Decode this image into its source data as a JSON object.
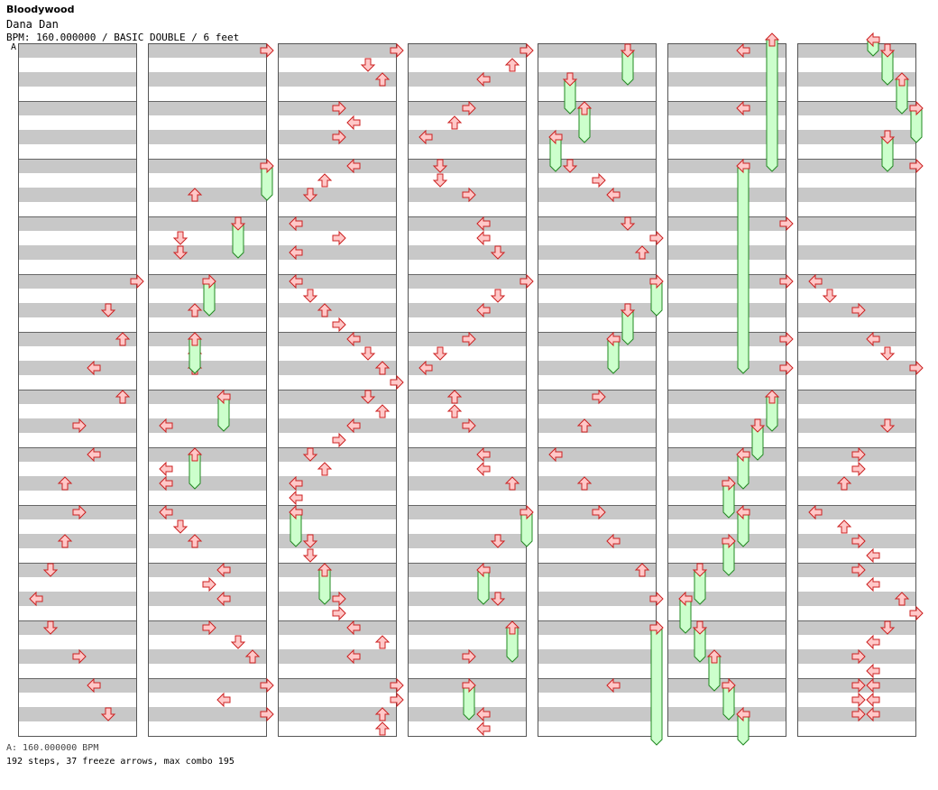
{
  "song": {
    "title": "Bloodywood",
    "chart_name": "Dana Dan",
    "info": "BPM: 160.000000 / BASIC DOUBLE / 6 feet",
    "section_marker": "A"
  },
  "footer": {
    "bpm_line": "A: 160.000000 BPM",
    "stats_line": "192 steps, 37 freeze arrows, max combo 195"
  },
  "colors": {
    "stripe": "#c8c8c8",
    "arrow_fill": "#ffc8c8",
    "arrow_stroke": "#cc2020",
    "freeze_fill": "#ccffcc",
    "freeze_stroke": "#228822",
    "border": "#555555"
  },
  "chart_data": {
    "type": "step-chart",
    "mode": "BASIC DOUBLE",
    "bpm": 160,
    "difficulty_feet": 6,
    "panels": 8,
    "steps": 192,
    "freeze_arrows": 37,
    "max_combo": 195
  }
}
